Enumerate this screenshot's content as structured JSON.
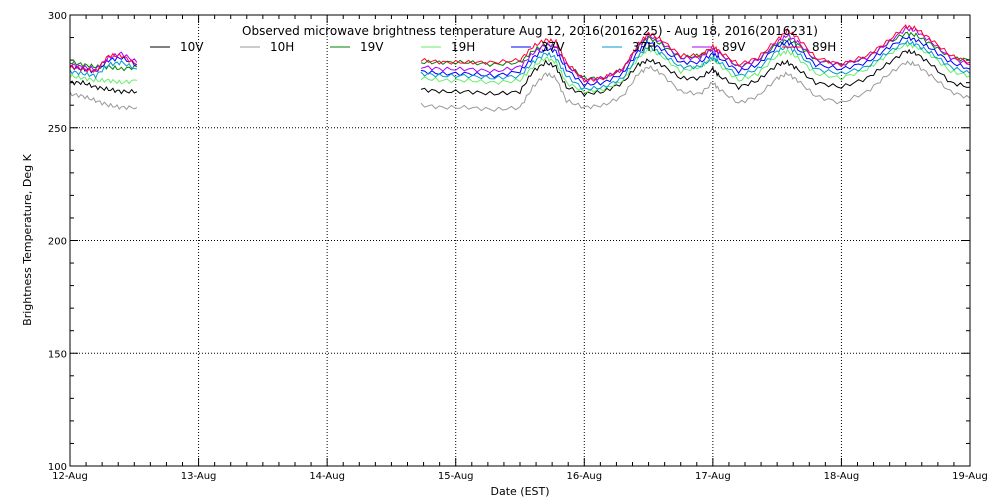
{
  "chart_data": {
    "type": "line",
    "title": "Observed microwave brightness temperature Aug 12, 2016(2016225) - Aug 18, 2016(2016231)",
    "xlabel": "Date (EST)",
    "ylabel": "Brightness Temperature, Deg K",
    "ylim": [
      100,
      300
    ],
    "xlim": [
      0,
      7
    ],
    "grid": true,
    "legend_position": "top",
    "x_ticks": [
      {
        "value": 0,
        "label": "12-Aug"
      },
      {
        "value": 1,
        "label": "13-Aug"
      },
      {
        "value": 2,
        "label": "14-Aug"
      },
      {
        "value": 3,
        "label": "15-Aug"
      },
      {
        "value": 4,
        "label": "16-Aug"
      },
      {
        "value": 5,
        "label": "17-Aug"
      },
      {
        "value": 6,
        "label": "18-Aug"
      },
      {
        "value": 7,
        "label": "19-Aug"
      }
    ],
    "y_ticks": [
      {
        "value": 100,
        "label": "100"
      },
      {
        "value": 150,
        "label": "150"
      },
      {
        "value": 200,
        "label": "200"
      },
      {
        "value": 250,
        "label": "250"
      },
      {
        "value": 300,
        "label": "300"
      }
    ],
    "segments": [
      {
        "x": [
          0.0,
          0.1,
          0.2,
          0.3,
          0.4,
          0.52
        ]
      },
      {
        "x": [
          2.73,
          2.9,
          3.1,
          3.3,
          3.5,
          3.6,
          3.7,
          3.78,
          3.86,
          4.0,
          4.15,
          4.3,
          4.42,
          4.5,
          4.6,
          4.75,
          4.9,
          5.0,
          5.05,
          5.2,
          5.35,
          5.5,
          5.58,
          5.66,
          5.8,
          6.0,
          6.2,
          6.35,
          6.5,
          6.58,
          6.7,
          6.85,
          7.0
        ]
      }
    ],
    "series": [
      {
        "name": "10V",
        "color": "#000000",
        "values": [
          [
            270,
            270,
            268,
            267,
            266,
            266
          ],
          [
            267,
            266,
            266,
            265,
            266,
            275,
            279,
            277,
            268,
            265,
            266,
            270,
            278,
            280,
            278,
            272,
            272,
            276,
            273,
            268,
            271,
            278,
            279,
            276,
            270,
            268,
            272,
            278,
            284,
            283,
            278,
            270,
            268
          ]
        ]
      },
      {
        "name": "10H",
        "color": "#999999",
        "values": [
          [
            265,
            264,
            262,
            260,
            259,
            259
          ],
          [
            260,
            259,
            259,
            258,
            259,
            268,
            274,
            272,
            262,
            259,
            260,
            264,
            274,
            277,
            274,
            266,
            265,
            270,
            267,
            261,
            264,
            272,
            274,
            271,
            264,
            261,
            266,
            273,
            279,
            278,
            273,
            266,
            263
          ]
        ]
      },
      {
        "name": "19V",
        "color": "#008000",
        "values": [
          [
            279,
            278,
            277,
            277,
            276,
            277
          ],
          [
            279,
            279,
            279,
            278,
            279,
            284,
            287,
            286,
            278,
            272,
            272,
            276,
            286,
            290,
            287,
            281,
            282,
            285,
            283,
            277,
            280,
            287,
            289,
            287,
            280,
            278,
            281,
            287,
            292,
            291,
            287,
            281,
            280
          ]
        ]
      },
      {
        "name": "19H",
        "color": "#66ee66",
        "values": [
          [
            273,
            272,
            271,
            271,
            270,
            271
          ],
          [
            272,
            271,
            271,
            270,
            271,
            277,
            281,
            279,
            270,
            266,
            267,
            271,
            281,
            285,
            282,
            275,
            277,
            281,
            278,
            271,
            274,
            282,
            284,
            281,
            274,
            272,
            276,
            282,
            287,
            286,
            282,
            275,
            273
          ]
        ]
      },
      {
        "name": "37V",
        "color": "#0000ff",
        "values": [
          [
            277,
            276,
            275,
            280,
            281,
            278
          ],
          [
            275,
            274,
            274,
            273,
            275,
            281,
            285,
            284,
            276,
            269,
            270,
            274,
            284,
            288,
            285,
            279,
            279,
            283,
            281,
            275,
            278,
            286,
            288,
            285,
            278,
            276,
            279,
            285,
            290,
            289,
            285,
            279,
            276
          ]
        ]
      },
      {
        "name": "37H",
        "color": "#009acd",
        "values": [
          [
            275,
            274,
            273,
            278,
            279,
            276
          ],
          [
            274,
            273,
            273,
            272,
            273,
            279,
            283,
            281,
            273,
            267,
            268,
            272,
            282,
            286,
            283,
            277,
            277,
            281,
            279,
            273,
            276,
            284,
            286,
            283,
            276,
            274,
            277,
            283,
            288,
            287,
            283,
            277,
            274
          ]
        ]
      },
      {
        "name": "89V",
        "color": "#aa00ff",
        "values": [
          [
            278,
            277,
            276,
            281,
            283,
            279
          ],
          [
            277,
            276,
            276,
            275,
            277,
            283,
            287,
            286,
            278,
            271,
            272,
            276,
            286,
            291,
            288,
            281,
            281,
            285,
            283,
            277,
            280,
            288,
            291,
            288,
            280,
            278,
            281,
            287,
            294,
            293,
            288,
            281,
            278
          ]
        ]
      },
      {
        "name": "89H",
        "color": "#ff0033",
        "values": [
          [
            277,
            276,
            275,
            282,
            282,
            278
          ],
          [
            280,
            279,
            279,
            279,
            280,
            286,
            289,
            288,
            279,
            271,
            272,
            276,
            287,
            292,
            289,
            282,
            282,
            286,
            284,
            278,
            281,
            289,
            293,
            290,
            281,
            278,
            282,
            288,
            295,
            294,
            289,
            282,
            279
          ]
        ]
      }
    ]
  }
}
